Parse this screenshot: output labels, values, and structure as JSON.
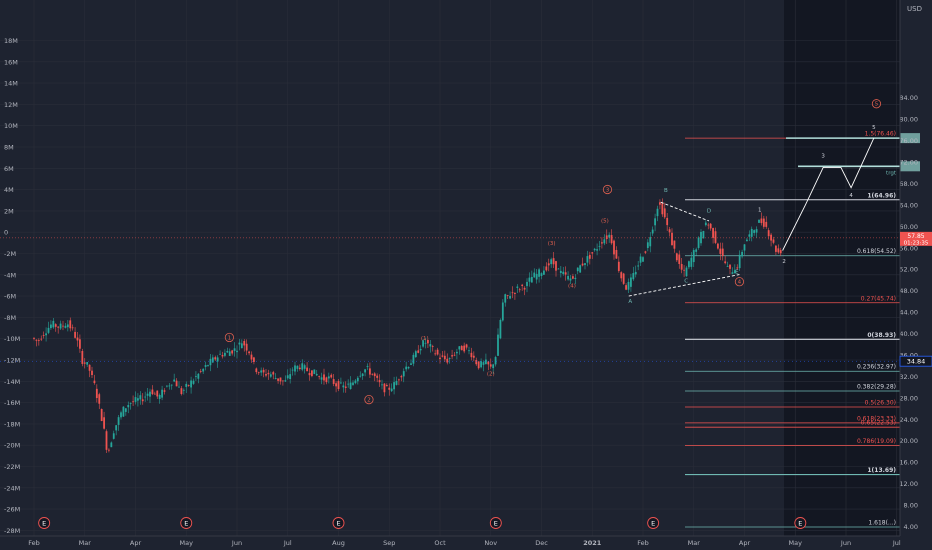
{
  "colors": {
    "background": "#1e2330",
    "grid": "#2a2e39",
    "axis_text": "#b2b5be",
    "candle_up": "#26a69a",
    "candle_down": "#ef5350",
    "wave_label": "#e0604f",
    "fib_red": "#ef5350",
    "fib_teal": "#6fb8b2",
    "fib_white": "#d1d4dc",
    "projection": "#ffffff",
    "price_badge": "#ef5350",
    "level_badge": "#2962ff"
  },
  "chart_data": {
    "type": "candlestick",
    "left_axis_ticks": [
      "18M",
      "16M",
      "14M",
      "12M",
      "10M",
      "8M",
      "6M",
      "4M",
      "2M",
      "0",
      "-2M",
      "-4M",
      "-6M",
      "-8M",
      "-10M",
      "-12M",
      "-14M",
      "-16M",
      "-18M",
      "-20M",
      "-22M",
      "-24M",
      "-26M",
      "-28M"
    ],
    "right_axis_ticks": [
      "84.00",
      "80.00",
      "76.00",
      "72.00",
      "68.00",
      "64.00",
      "60.00",
      "56.00",
      "52.00",
      "48.00",
      "44.00",
      "40.00",
      "36.00",
      "32.00",
      "28.00",
      "24.00",
      "20.00",
      "16.00",
      "12.00",
      "8.00",
      "4.00"
    ],
    "right_axis_unit": "USD",
    "ylim": [
      3.5,
      84.5
    ],
    "x_ticks": [
      {
        "label": "Feb",
        "t": 0
      },
      {
        "label": "Mar",
        "t": 1
      },
      {
        "label": "Apr",
        "t": 2
      },
      {
        "label": "May",
        "t": 3
      },
      {
        "label": "Jun",
        "t": 4
      },
      {
        "label": "Jul",
        "t": 5
      },
      {
        "label": "Aug",
        "t": 6
      },
      {
        "label": "Sep",
        "t": 7
      },
      {
        "label": "Oct",
        "t": 8
      },
      {
        "label": "Nov",
        "t": 9
      },
      {
        "label": "Dec",
        "t": 10
      },
      {
        "label": "2021",
        "t": 11
      },
      {
        "label": "Feb",
        "t": 12
      },
      {
        "label": "Mar",
        "t": 13
      },
      {
        "label": "Apr",
        "t": 14
      },
      {
        "label": "May",
        "t": 15
      },
      {
        "label": "Jun",
        "t": 16
      },
      {
        "label": "Jul",
        "t": 17
      }
    ],
    "price_path": [
      [
        0.0,
        39.2
      ],
      [
        0.12,
        38.5
      ],
      [
        0.25,
        40.3
      ],
      [
        0.4,
        41.8
      ],
      [
        0.55,
        41.2
      ],
      [
        0.7,
        42.0
      ],
      [
        0.82,
        40.5
      ],
      [
        0.9,
        38.5
      ],
      [
        1.0,
        35.0
      ],
      [
        1.12,
        33.8
      ],
      [
        1.25,
        30.0
      ],
      [
        1.4,
        23.5
      ],
      [
        1.5,
        17.5
      ],
      [
        1.62,
        22.0
      ],
      [
        1.78,
        25.5
      ],
      [
        1.92,
        27.0
      ],
      [
        2.05,
        27.5
      ],
      [
        2.2,
        28.0
      ],
      [
        2.35,
        29.5
      ],
      [
        2.5,
        28.0
      ],
      [
        2.65,
        30.0
      ],
      [
        2.8,
        31.5
      ],
      [
        2.95,
        29.0
      ],
      [
        3.1,
        30.5
      ],
      [
        3.25,
        32.0
      ],
      [
        3.5,
        34.5
      ],
      [
        3.7,
        36.0
      ],
      [
        3.85,
        36.5
      ],
      [
        4.0,
        37.0
      ],
      [
        4.15,
        38.5
      ],
      [
        4.3,
        36.5
      ],
      [
        4.4,
        33.5
      ],
      [
        4.55,
        32.5
      ],
      [
        4.7,
        32.5
      ],
      [
        4.85,
        31.5
      ],
      [
        5.0,
        31.0
      ],
      [
        5.15,
        33.5
      ],
      [
        5.3,
        34.0
      ],
      [
        5.45,
        33.0
      ],
      [
        5.6,
        32.5
      ],
      [
        5.75,
        31.5
      ],
      [
        5.85,
        31.7
      ],
      [
        6.0,
        30.5
      ],
      [
        6.15,
        30.0
      ],
      [
        6.3,
        30.5
      ],
      [
        6.45,
        32.5
      ],
      [
        6.6,
        33.5
      ],
      [
        6.75,
        32.0
      ],
      [
        6.9,
        30.0
      ],
      [
        7.0,
        29.5
      ],
      [
        7.15,
        30.5
      ],
      [
        7.35,
        33.5
      ],
      [
        7.5,
        35.0
      ],
      [
        7.65,
        37.5
      ],
      [
        7.75,
        38.5
      ],
      [
        7.9,
        37.0
      ],
      [
        8.05,
        35.5
      ],
      [
        8.2,
        35.0
      ],
      [
        8.35,
        36.5
      ],
      [
        8.5,
        37.5
      ],
      [
        8.65,
        36.5
      ],
      [
        8.8,
        34.0
      ],
      [
        8.95,
        34.5
      ],
      [
        9.05,
        33.5
      ],
      [
        9.15,
        36.0
      ],
      [
        9.2,
        40.0
      ],
      [
        9.3,
        46.5
      ],
      [
        9.45,
        47.5
      ],
      [
        9.6,
        48.5
      ],
      [
        9.75,
        49.0
      ],
      [
        9.85,
        50.5
      ],
      [
        9.95,
        51.0
      ],
      [
        10.1,
        52.0
      ],
      [
        10.25,
        53.5
      ],
      [
        10.4,
        51.5
      ],
      [
        10.55,
        50.5
      ],
      [
        10.65,
        50.0
      ],
      [
        10.8,
        52.5
      ],
      [
        10.95,
        54.0
      ],
      [
        11.1,
        55.5
      ],
      [
        11.25,
        57.5
      ],
      [
        11.4,
        58.5
      ],
      [
        11.5,
        54.5
      ],
      [
        11.62,
        50.5
      ],
      [
        11.72,
        48.5
      ],
      [
        11.82,
        50.0
      ],
      [
        12.0,
        54.0
      ],
      [
        12.12,
        56.0
      ],
      [
        12.25,
        60.5
      ],
      [
        12.35,
        64.5
      ],
      [
        12.45,
        62.5
      ],
      [
        12.6,
        57.5
      ],
      [
        12.75,
        53.0
      ],
      [
        12.85,
        51.0
      ],
      [
        13.0,
        54.0
      ],
      [
        13.15,
        57.5
      ],
      [
        13.3,
        61.0
      ],
      [
        13.45,
        58.0
      ],
      [
        13.6,
        54.5
      ],
      [
        13.75,
        51.5
      ],
      [
        13.9,
        52.5
      ],
      [
        14.05,
        57.0
      ],
      [
        14.2,
        59.0
      ],
      [
        14.35,
        61.0
      ],
      [
        14.45,
        60.5
      ],
      [
        14.6,
        57.0
      ],
      [
        14.7,
        55.0
      ],
      [
        14.75,
        55.5
      ]
    ],
    "projection_path": [
      [
        14.75,
        55.5
      ],
      [
        15.2,
        64.0
      ],
      [
        15.55,
        71.0
      ],
      [
        15.9,
        71.0
      ],
      [
        16.1,
        67.2
      ],
      [
        16.55,
        76.5
      ]
    ],
    "triangle": {
      "upper": [
        [
          12.35,
          64.5
        ],
        [
          13.3,
          61.0
        ]
      ],
      "lower": [
        [
          11.72,
          47.0
        ],
        [
          13.9,
          51.0
        ]
      ]
    },
    "fib_levels": [
      {
        "label": "1.5(76.46)",
        "price": 76.46,
        "color": "red",
        "bold": false
      },
      {
        "label": "1(64.96)",
        "price": 64.96,
        "color": "white",
        "bold": true
      },
      {
        "label": "0.618(54.52)",
        "price": 54.52,
        "color": "teal",
        "bold": false
      },
      {
        "label": "0.27(45.74)",
        "price": 45.74,
        "color": "red",
        "bold": false
      },
      {
        "label": "0(38.93)",
        "price": 38.93,
        "color": "white",
        "bold": true
      },
      {
        "label": "0.236(32.97)",
        "price": 32.97,
        "color": "teal",
        "bold": false
      },
      {
        "label": "0.382(29.28)",
        "price": 29.28,
        "color": "teal",
        "bold": false
      },
      {
        "label": "0.5(26.30)",
        "price": 26.3,
        "color": "red",
        "bold": false
      },
      {
        "label": "0.618(23.33)",
        "price": 23.33,
        "color": "red",
        "bold": false
      },
      {
        "label": "0.65(22.53)",
        "price": 22.53,
        "color": "red",
        "bold": false
      },
      {
        "label": "0.786(19.09)",
        "price": 19.09,
        "color": "red",
        "bold": false
      },
      {
        "label": "1(13.69)",
        "price": 13.69,
        "color": "teal",
        "bold": true
      },
      {
        "label": "1.618(...)",
        "price": 3.9,
        "color": "teal",
        "bold": false
      }
    ],
    "target_boxes": [
      {
        "price": 76.46,
        "label": ""
      },
      {
        "price": 71.2,
        "label": "trgt"
      }
    ],
    "wave_labels": [
      {
        "text": "1",
        "t": 3.85,
        "price": 38.9,
        "circle": true
      },
      {
        "text": "2",
        "t": 6.6,
        "price": 27.3,
        "circle": true
      },
      {
        "text": "(1)",
        "t": 7.7,
        "price": 38.8,
        "circle": false
      },
      {
        "text": "(2)",
        "t": 9.0,
        "price": 32.2,
        "circle": false
      },
      {
        "text": "(3)",
        "t": 10.2,
        "price": 56.5,
        "circle": false
      },
      {
        "text": "(4)",
        "t": 10.6,
        "price": 48.6,
        "circle": false
      },
      {
        "text": "(5)",
        "t": 11.25,
        "price": 60.7,
        "circle": false
      },
      {
        "text": "3",
        "t": 11.3,
        "price": 66.5,
        "circle": true
      },
      {
        "text": "B",
        "t": 12.45,
        "price": 66.4,
        "circle": false
      },
      {
        "text": "A",
        "t": 11.75,
        "price": 45.7,
        "circle": false
      },
      {
        "text": "C",
        "t": 12.85,
        "price": 49.5,
        "circle": false
      },
      {
        "text": "D",
        "t": 13.3,
        "price": 62.6,
        "circle": false
      },
      {
        "text": "E",
        "t": 13.85,
        "price": 51.2,
        "circle": false
      },
      {
        "text": "4",
        "t": 13.9,
        "price": 49.3,
        "circle": true
      },
      {
        "text": "1",
        "t": 14.3,
        "price": 62.8,
        "circle": false
      },
      {
        "text": "2",
        "t": 14.78,
        "price": 53.2,
        "circle": false
      },
      {
        "text": "3",
        "t": 15.55,
        "price": 72.8,
        "circle": false
      },
      {
        "text": "4",
        "t": 16.1,
        "price": 65.5,
        "circle": false
      },
      {
        "text": "5",
        "t": 16.55,
        "price": 78.2,
        "circle": false
      },
      {
        "text": "5",
        "t": 16.6,
        "price": 82.5,
        "circle": true
      }
    ],
    "earnings_markers": [
      {
        "t": 0.2
      },
      {
        "t": 3.0
      },
      {
        "t": 6.0
      },
      {
        "t": 9.1
      },
      {
        "t": 12.2
      },
      {
        "t": 15.1
      }
    ],
    "earnings_label": "E",
    "current_price": {
      "price": 57.85,
      "labels": [
        "57.85",
        "01:23:35"
      ]
    },
    "level_marker": {
      "price": 34.84,
      "label": "34.84"
    }
  }
}
